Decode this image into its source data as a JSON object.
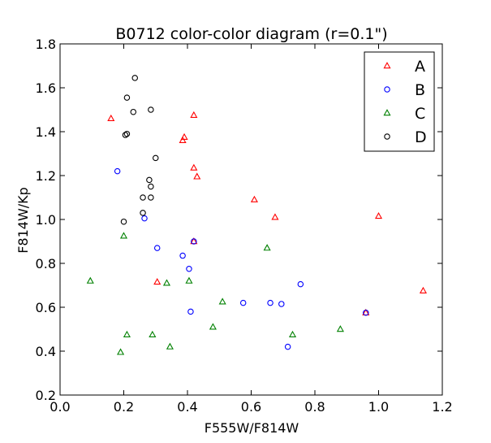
{
  "chart_data": {
    "type": "scatter",
    "title": "B0712 color-color diagram (r=0.1\")",
    "xlabel": "F555W/F814W",
    "ylabel": "F814W/Kp",
    "xlim": [
      0.0,
      1.2
    ],
    "ylim": [
      0.2,
      1.8
    ],
    "xticks": [
      "0.0",
      "0.2",
      "0.4",
      "0.6",
      "0.8",
      "1.0",
      "1.2"
    ],
    "yticks": [
      "0.2",
      "0.4",
      "0.6",
      "0.8",
      "1.0",
      "1.2",
      "1.4",
      "1.6",
      "1.8"
    ],
    "grid": false,
    "legend_position": "top-right",
    "series": [
      {
        "name": "A",
        "marker": "triangle",
        "color": "#ff0000",
        "points": [
          [
            0.16,
            1.46
          ],
          [
            0.42,
            1.475
          ],
          [
            0.385,
            1.36
          ],
          [
            0.39,
            1.375
          ],
          [
            0.42,
            1.235
          ],
          [
            0.43,
            1.195
          ],
          [
            0.61,
            1.09
          ],
          [
            0.675,
            1.01
          ],
          [
            1.0,
            1.015
          ],
          [
            0.42,
            0.9
          ],
          [
            0.305,
            0.715
          ],
          [
            1.14,
            0.675
          ],
          [
            0.96,
            0.575
          ]
        ]
      },
      {
        "name": "B",
        "marker": "circle",
        "color": "#0000ff",
        "points": [
          [
            0.18,
            1.22
          ],
          [
            0.265,
            1.005
          ],
          [
            0.42,
            0.9
          ],
          [
            0.305,
            0.87
          ],
          [
            0.385,
            0.835
          ],
          [
            0.405,
            0.775
          ],
          [
            0.755,
            0.705
          ],
          [
            0.575,
            0.62
          ],
          [
            0.66,
            0.62
          ],
          [
            0.695,
            0.615
          ],
          [
            0.41,
            0.58
          ],
          [
            0.96,
            0.575
          ],
          [
            0.715,
            0.42
          ]
        ]
      },
      {
        "name": "C",
        "marker": "triangle",
        "color": "#008000",
        "points": [
          [
            0.2,
            0.925
          ],
          [
            0.65,
            0.87
          ],
          [
            0.095,
            0.72
          ],
          [
            0.405,
            0.72
          ],
          [
            0.335,
            0.71
          ],
          [
            0.51,
            0.625
          ],
          [
            0.48,
            0.51
          ],
          [
            0.88,
            0.5
          ],
          [
            0.21,
            0.475
          ],
          [
            0.29,
            0.475
          ],
          [
            0.73,
            0.475
          ],
          [
            0.345,
            0.42
          ],
          [
            0.19,
            0.395
          ]
        ]
      },
      {
        "name": "D",
        "marker": "circle",
        "color": "#000000",
        "points": [
          [
            0.235,
            1.645
          ],
          [
            0.21,
            1.555
          ],
          [
            0.285,
            1.5
          ],
          [
            0.23,
            1.49
          ],
          [
            0.205,
            1.385
          ],
          [
            0.21,
            1.39
          ],
          [
            0.3,
            1.28
          ],
          [
            0.28,
            1.18
          ],
          [
            0.285,
            1.15
          ],
          [
            0.26,
            1.1
          ],
          [
            0.285,
            1.1
          ],
          [
            0.26,
            1.03
          ],
          [
            0.2,
            0.99
          ]
        ]
      }
    ]
  }
}
